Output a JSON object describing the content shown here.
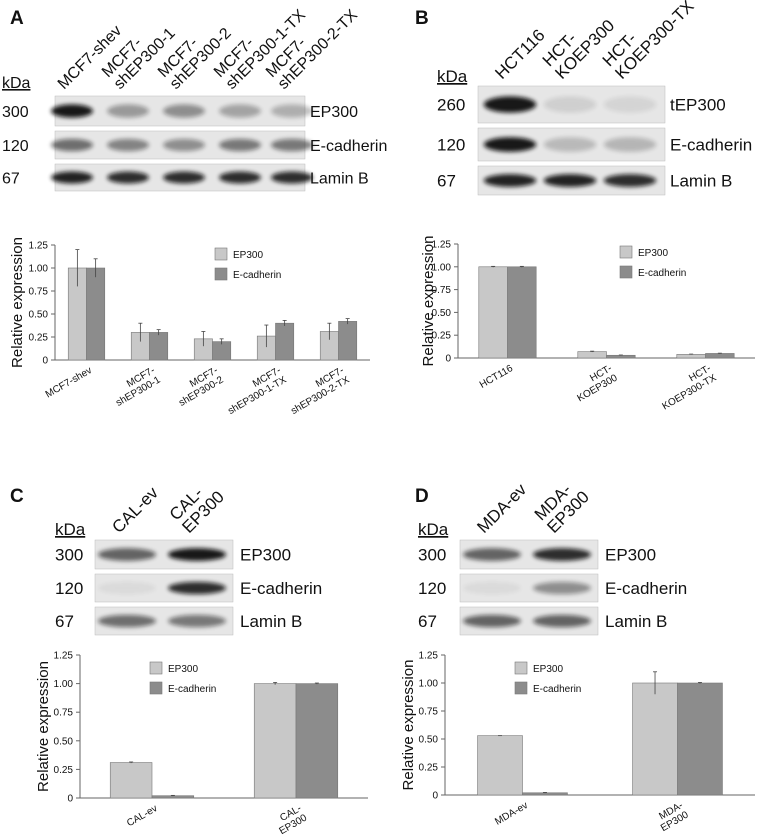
{
  "panels": [
    {
      "letter": "A",
      "kda_header": "kDa",
      "lanes": [
        [
          "MCF7-shev"
        ],
        [
          "MCF7-",
          "shEP300-1"
        ],
        [
          "MCF7-",
          "shEP300-2"
        ],
        [
          "MCF7-",
          "shEP300-1-TX"
        ],
        [
          "MCF7-",
          "shEP300-2-TX"
        ]
      ],
      "rows": [
        {
          "kda": "300",
          "label": "EP300"
        },
        {
          "kda": "120",
          "label": "E-cadherin"
        },
        {
          "kda": "67",
          "label": "Lamin B"
        }
      ]
    },
    {
      "letter": "B",
      "kda_header": "kDa",
      "lanes": [
        [
          "HCT116"
        ],
        [
          "HCT-",
          "KOEP300"
        ],
        [
          "HCT-",
          "KOEP300-TX"
        ]
      ],
      "rows": [
        {
          "kda": "260",
          "label": "tEP300"
        },
        {
          "kda": "120",
          "label": "E-cadherin"
        },
        {
          "kda": "67",
          "label": "Lamin B"
        }
      ]
    },
    {
      "letter": "C",
      "kda_header": "kDa",
      "lanes": [
        [
          "CAL-ev"
        ],
        [
          "CAL-",
          "EP300"
        ]
      ],
      "rows": [
        {
          "kda": "300",
          "label": "EP300"
        },
        {
          "kda": "120",
          "label": "E-cadherin"
        },
        {
          "kda": "67",
          "label": "Lamin B"
        }
      ]
    },
    {
      "letter": "D",
      "kda_header": "kDa",
      "lanes": [
        [
          "MDA-ev"
        ],
        [
          "MDA-",
          "EP300"
        ]
      ],
      "rows": [
        {
          "kda": "300",
          "label": "EP300"
        },
        {
          "kda": "120",
          "label": "E-cadherin"
        },
        {
          "kda": "67",
          "label": "Lamin B"
        }
      ]
    }
  ],
  "chart_data": [
    {
      "type": "bar",
      "y_label": "Relative expression",
      "categories": [
        [
          "MCF7-shev"
        ],
        [
          "MCF7-",
          "shEP300-1"
        ],
        [
          "MCF7-",
          "shEP300-2"
        ],
        [
          "MCF7-",
          "shEP300-1-TX"
        ],
        [
          "MCF7-",
          "shEP300-2-TX"
        ]
      ],
      "series": [
        {
          "name": "EP300",
          "color": "#c8c8c8",
          "values": [
            1.0,
            0.3,
            0.23,
            0.26,
            0.31
          ],
          "errors": [
            0.2,
            0.1,
            0.08,
            0.12,
            0.09
          ]
        },
        {
          "name": "E-cadherin",
          "color": "#8c8c8c",
          "values": [
            1.0,
            0.3,
            0.2,
            0.4,
            0.42
          ],
          "errors": [
            0.1,
            0.03,
            0.03,
            0.03,
            0.03
          ]
        }
      ],
      "ylim": [
        0,
        1.25
      ],
      "yticks": [
        0,
        0.25,
        {
          "value": 0.5,
          "label": "0.50"
        },
        0.75,
        {
          "value": 1,
          "label": "1.00"
        },
        1.25
      ]
    },
    {
      "type": "bar",
      "y_label": "Relative expression",
      "categories": [
        [
          "HCT116"
        ],
        [
          "HCT-",
          "KOEP300"
        ],
        [
          "HCT-",
          "KOEP300-TX"
        ]
      ],
      "series": [
        {
          "name": "EP300",
          "color": "#c8c8c8",
          "values": [
            1.0,
            0.07,
            0.04
          ],
          "errors": [
            0.005,
            0.005,
            0.003
          ]
        },
        {
          "name": "E-cadherin",
          "color": "#8c8c8c",
          "values": [
            1.0,
            0.03,
            0.05
          ],
          "errors": [
            0.005,
            0.003,
            0.003
          ]
        }
      ],
      "ylim": [
        0,
        1.25
      ],
      "yticks": [
        0,
        0.25,
        {
          "value": 0.5,
          "label": "0.50"
        },
        0.75,
        {
          "value": 1,
          "label": "1.00"
        },
        1.25
      ]
    },
    {
      "type": "bar",
      "y_label": "Relative expression",
      "categories": [
        [
          "CAL-ev"
        ],
        [
          "CAL-",
          "EP300"
        ]
      ],
      "series": [
        {
          "name": "EP300",
          "color": "#c8c8c8",
          "values": [
            0.31,
            1.0
          ],
          "errors": [
            0.005,
            0.01
          ]
        },
        {
          "name": "E-cadherin",
          "color": "#8c8c8c",
          "values": [
            0.02,
            1.0
          ],
          "errors": [
            0.003,
            0.005
          ]
        }
      ],
      "ylim": [
        0,
        1.25
      ],
      "yticks": [
        0,
        0.25,
        {
          "value": 0.5,
          "label": "0.50"
        },
        0.75,
        {
          "value": 1,
          "label": "1.00"
        },
        1.25
      ]
    },
    {
      "type": "bar",
      "y_label": "Relative expression",
      "categories": [
        [
          "MDA-ev"
        ],
        [
          "MDA-",
          "EP300"
        ]
      ],
      "series": [
        {
          "name": "EP300",
          "color": "#c8c8c8",
          "values": [
            0.53,
            1.0
          ],
          "errors": [
            0,
            0.1
          ]
        },
        {
          "name": "E-cadherin",
          "color": "#8c8c8c",
          "values": [
            0.02,
            1.0
          ],
          "errors": [
            0.003,
            0.005
          ]
        }
      ],
      "ylim": [
        0,
        1.25
      ],
      "yticks": [
        0,
        0.25,
        {
          "value": 0.5,
          "label": "0.50"
        },
        0.75,
        {
          "value": 1,
          "label": "1.00"
        },
        1.25
      ]
    }
  ]
}
